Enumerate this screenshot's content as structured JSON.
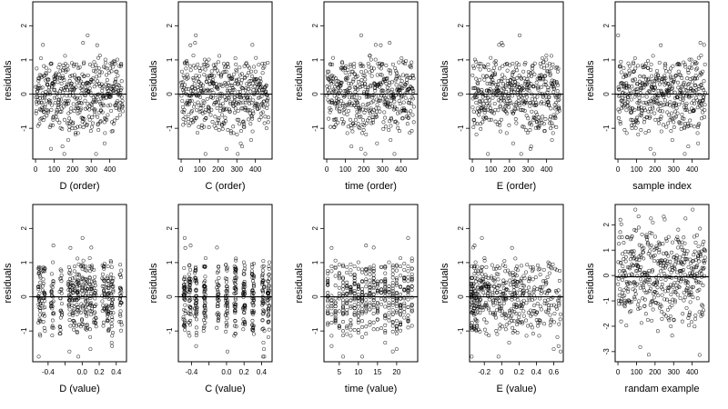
{
  "figure": {
    "background": "#ffffff",
    "point_color": "#000000",
    "point_style": "open-circle"
  },
  "chart_data": [
    {
      "type": "scatter",
      "xlabel": "D (order)",
      "ylabel": "residuals",
      "xlim": [
        -15,
        490
      ],
      "ylim": [
        -1.9,
        2.7
      ],
      "xticks": [
        0,
        100,
        200,
        300,
        400
      ],
      "yticks": [
        -1,
        0,
        1,
        2
      ],
      "reference_line_y": 0,
      "n_points": 470,
      "x_range": [
        1,
        470
      ],
      "residual_range": [
        -1.75,
        2.6
      ],
      "points": []
    },
    {
      "type": "scatter",
      "xlabel": "C (order)",
      "ylabel": "residuals",
      "xlim": [
        -15,
        490
      ],
      "ylim": [
        -1.9,
        2.7
      ],
      "xticks": [
        0,
        100,
        200,
        300,
        400
      ],
      "yticks": [
        -1,
        0,
        1,
        2
      ],
      "reference_line_y": 0,
      "n_points": 470,
      "x_range": [
        1,
        470
      ],
      "residual_range": [
        -1.75,
        2.6
      ],
      "points": []
    },
    {
      "type": "scatter",
      "xlabel": "time (order)",
      "ylabel": "residuals",
      "xlim": [
        -15,
        490
      ],
      "ylim": [
        -1.9,
        2.7
      ],
      "xticks": [
        0,
        100,
        200,
        300,
        400
      ],
      "yticks": [
        -1,
        0,
        1,
        2
      ],
      "reference_line_y": 0,
      "n_points": 470,
      "x_range": [
        1,
        470
      ],
      "residual_range": [
        -1.75,
        2.6
      ],
      "points": []
    },
    {
      "type": "scatter",
      "xlabel": "E (order)",
      "ylabel": "residuals",
      "xlim": [
        -15,
        490
      ],
      "ylim": [
        -1.9,
        2.7
      ],
      "xticks": [
        0,
        100,
        200,
        300,
        400
      ],
      "yticks": [
        -1,
        0,
        1,
        2
      ],
      "reference_line_y": 0,
      "n_points": 470,
      "x_range": [
        1,
        470
      ],
      "residual_range": [
        -1.75,
        2.6
      ],
      "points": []
    },
    {
      "type": "scatter",
      "xlabel": "sample index",
      "ylabel": "residuals",
      "xlim": [
        -15,
        490
      ],
      "ylim": [
        -1.9,
        2.7
      ],
      "xticks": [
        0,
        100,
        200,
        300,
        400
      ],
      "yticks": [
        -1,
        0,
        1,
        2
      ],
      "reference_line_y": 0,
      "n_points": 470,
      "x_range": [
        1,
        470
      ],
      "residual_range": [
        -1.75,
        2.6
      ],
      "points": []
    },
    {
      "type": "scatter",
      "xlabel": "D (value)",
      "ylabel": "residuals",
      "xlim": [
        -0.58,
        0.52
      ],
      "ylim": [
        -1.9,
        2.7
      ],
      "xticks": [
        -0.4,
        -0.2,
        0.0,
        0.2,
        0.4
      ],
      "xtick_labels": [
        "-0.4",
        "",
        "0.0",
        "0.2",
        "0.4"
      ],
      "yticks": [
        -1,
        0,
        1,
        2
      ],
      "reference_line_y": 0,
      "n_points": 470,
      "x_range": [
        -0.55,
        0.5
      ],
      "x_pattern": "clustered-columns",
      "residual_range": [
        -1.75,
        2.6
      ],
      "points": []
    },
    {
      "type": "scatter",
      "xlabel": "C (value)",
      "ylabel": "residuals",
      "xlim": [
        -0.55,
        0.52
      ],
      "ylim": [
        -1.9,
        2.7
      ],
      "xticks": [
        -0.4,
        -0.2,
        0.0,
        0.2,
        0.4
      ],
      "xtick_labels": [
        "-0.4",
        "",
        "0.0",
        "0.2",
        "0.4"
      ],
      "yticks": [
        -1,
        0,
        1,
        2
      ],
      "reference_line_y": 0,
      "n_points": 470,
      "x_range": [
        -0.5,
        0.5
      ],
      "x_pattern": "clustered-columns",
      "residual_range": [
        -1.75,
        2.6
      ],
      "points": []
    },
    {
      "type": "scatter",
      "xlabel": "time (value)",
      "ylabel": "residuals",
      "xlim": [
        1,
        25.5
      ],
      "ylim": [
        -1.9,
        2.7
      ],
      "xticks": [
        5,
        10,
        15,
        20
      ],
      "yticks": [
        -1,
        0,
        1,
        2
      ],
      "reference_line_y": 0,
      "n_points": 470,
      "x_range": [
        2,
        24
      ],
      "x_pattern": "integer-columns",
      "residual_range": [
        -1.75,
        2.6
      ],
      "points": []
    },
    {
      "type": "scatter",
      "xlabel": "E (value)",
      "ylabel": "residuals",
      "xlim": [
        -0.37,
        0.71
      ],
      "ylim": [
        -1.9,
        2.7
      ],
      "xticks": [
        -0.2,
        0.0,
        0.2,
        0.4,
        0.6
      ],
      "yticks": [
        -1,
        0,
        1,
        2
      ],
      "reference_line_y": 0,
      "n_points": 470,
      "x_range": [
        -0.35,
        0.68
      ],
      "x_pattern": "dense-near-left",
      "residual_range": [
        -1.75,
        2.6
      ],
      "points": []
    },
    {
      "type": "scatter",
      "xlabel": "randam example",
      "ylabel": "residuals",
      "xlim": [
        -15,
        490
      ],
      "ylim": [
        -3.4,
        2.8
      ],
      "xticks": [
        0,
        100,
        200,
        300,
        400
      ],
      "yticks": [
        -3,
        -2,
        -1,
        0,
        1,
        2
      ],
      "reference_line_y": -0.05,
      "n_points": 470,
      "x_range": [
        1,
        470
      ],
      "residual_range": [
        -3.2,
        2.6
      ],
      "points": []
    }
  ]
}
